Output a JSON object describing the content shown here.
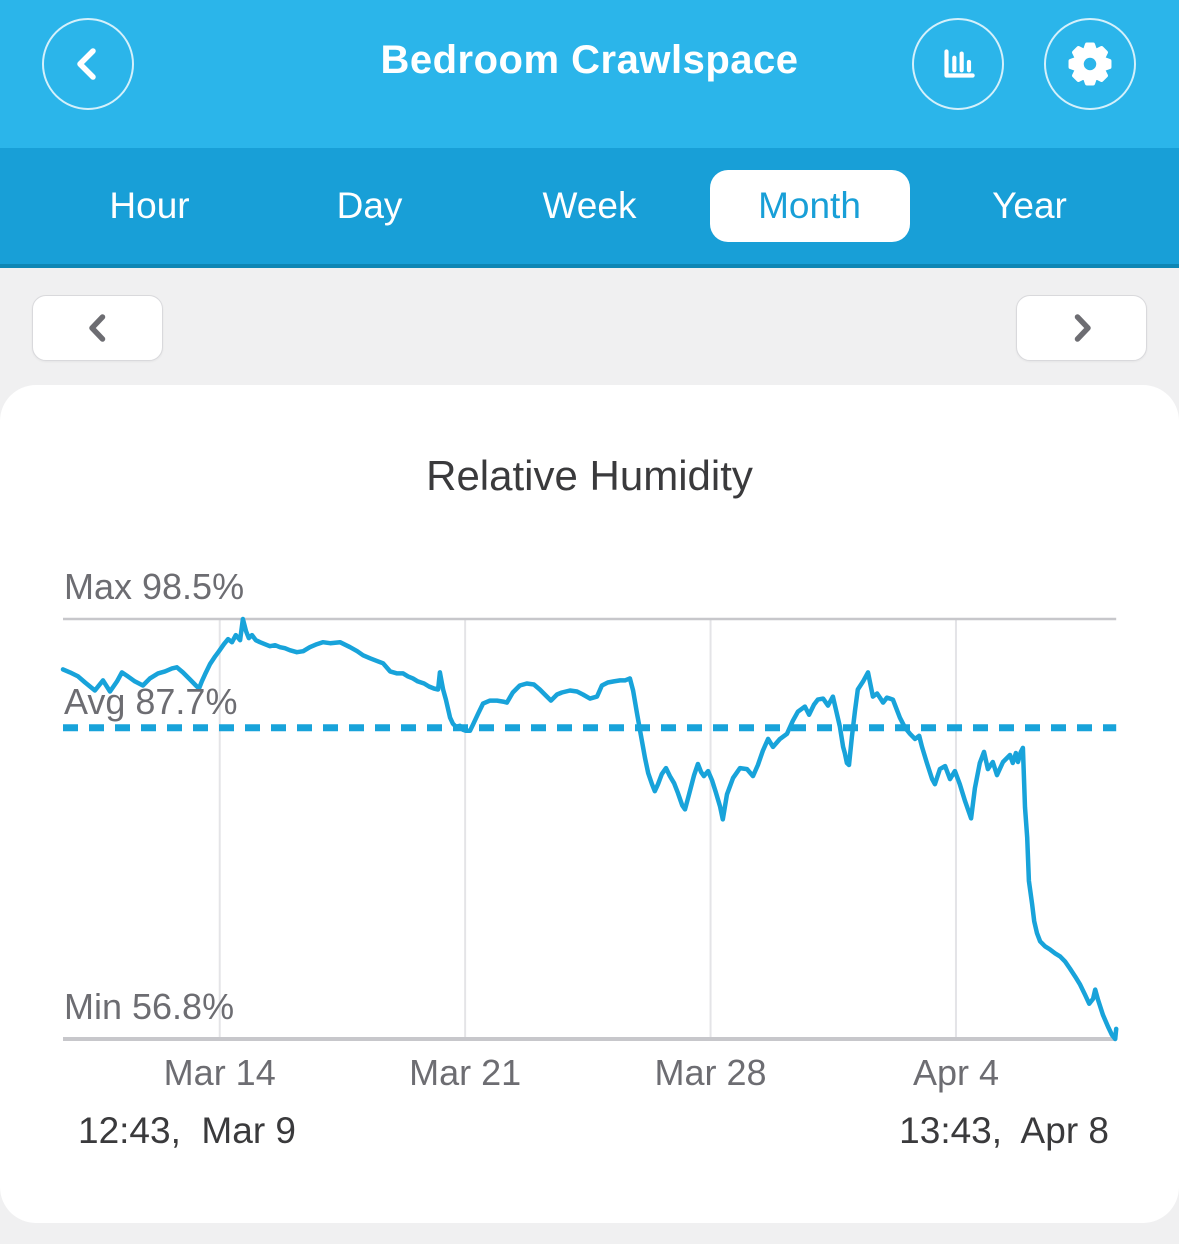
{
  "colors": {
    "header_bg": "#2bb5ea",
    "tab_bg": "#189fd7",
    "tab_border": "#0e86b4",
    "accent": "#18a3da",
    "page_bg": "#f0f0f1",
    "card_bg": "#ffffff",
    "text_dark": "#3a3a3c",
    "text_gray": "#6d6d72",
    "grid_light": "#e4e4e7",
    "grid_dark": "#c7c7cb",
    "button_border": "#d9d9dc"
  },
  "header": {
    "title": "Bedroom Crawlspace",
    "icons": {
      "back": "chevron-left-icon",
      "chart": "bar-chart-icon",
      "settings": "gear-icon"
    }
  },
  "tabs": {
    "items": [
      {
        "label": "Hour",
        "active": false
      },
      {
        "label": "Day",
        "active": false
      },
      {
        "label": "Week",
        "active": false
      },
      {
        "label": "Month",
        "active": true
      },
      {
        "label": "Year",
        "active": false
      }
    ]
  },
  "pager": {
    "prev_icon": "chevron-left-icon",
    "next_icon": "chevron-right-icon"
  },
  "chart_data": {
    "type": "line",
    "title": "Relative Humidity",
    "ylabel": "Relative Humidity (%)",
    "xlabel": "",
    "grid": true,
    "legend": false,
    "stats": {
      "max": 98.5,
      "avg": 87.7,
      "min": 56.8
    },
    "stat_labels": {
      "max": "Max 98.5%",
      "avg": "Avg 87.7%",
      "min": "Min 56.8%"
    },
    "x_range_labels": {
      "start": "12:43,  Mar 9",
      "end": "13:43,  Apr 8"
    },
    "x_axis_days": 30.04,
    "ylim": [
      56.8,
      98.5
    ],
    "x_ticks": [
      {
        "label": "Mar 14",
        "day": 4.47
      },
      {
        "label": "Mar 21",
        "day": 11.47
      },
      {
        "label": "Mar 28",
        "day": 18.47
      },
      {
        "label": "Apr 4",
        "day": 25.47
      }
    ],
    "series": [
      {
        "name": "Relative Humidity",
        "unit": "%",
        "points": [
          [
            0,
            93.5
          ],
          [
            0.2,
            93.2
          ],
          [
            0.43,
            92.8
          ],
          [
            0.63,
            92.2
          ],
          [
            0.91,
            91.4
          ],
          [
            1.14,
            92.4
          ],
          [
            1.34,
            91.3
          ],
          [
            1.54,
            92.3
          ],
          [
            1.68,
            93.2
          ],
          [
            1.85,
            92.8
          ],
          [
            2.05,
            92.3
          ],
          [
            2.28,
            91.9
          ],
          [
            2.48,
            92.6
          ],
          [
            2.71,
            93.1
          ],
          [
            2.91,
            93.3
          ],
          [
            3.11,
            93.6
          ],
          [
            3.25,
            93.7
          ],
          [
            3.42,
            93.2
          ],
          [
            3.62,
            92.5
          ],
          [
            3.79,
            91.9
          ],
          [
            3.88,
            91.6
          ],
          [
            3.96,
            92.3
          ],
          [
            4.05,
            93
          ],
          [
            4.19,
            94
          ],
          [
            4.34,
            94.8
          ],
          [
            4.45,
            95.3
          ],
          [
            4.59,
            96
          ],
          [
            4.71,
            96.5
          ],
          [
            4.82,
            96.2
          ],
          [
            4.93,
            96.9
          ],
          [
            5.05,
            96.4
          ],
          [
            5.13,
            98.5
          ],
          [
            5.22,
            97.3
          ],
          [
            5.3,
            96.6
          ],
          [
            5.39,
            96.9
          ],
          [
            5.5,
            96.4
          ],
          [
            5.62,
            96.2
          ],
          [
            5.76,
            96
          ],
          [
            5.9,
            95.8
          ],
          [
            6.05,
            95.9
          ],
          [
            6.19,
            95.7
          ],
          [
            6.33,
            95.6
          ],
          [
            6.47,
            95.4
          ],
          [
            6.67,
            95.2
          ],
          [
            6.85,
            95.3
          ],
          [
            7.04,
            95.7
          ],
          [
            7.24,
            96
          ],
          [
            7.41,
            96.2
          ],
          [
            7.62,
            96.1
          ],
          [
            7.9,
            96.2
          ],
          [
            8.19,
            95.7
          ],
          [
            8.39,
            95.3
          ],
          [
            8.56,
            94.9
          ],
          [
            8.76,
            94.6
          ],
          [
            8.98,
            94.3
          ],
          [
            9.13,
            94.1
          ],
          [
            9.33,
            93.3
          ],
          [
            9.53,
            93.1
          ],
          [
            9.7,
            93.1
          ],
          [
            9.84,
            92.8
          ],
          [
            9.98,
            92.6
          ],
          [
            10.12,
            92.3
          ],
          [
            10.3,
            92.1
          ],
          [
            10.44,
            91.8
          ],
          [
            10.58,
            91.6
          ],
          [
            10.7,
            91.5
          ],
          [
            10.75,
            93.2
          ],
          [
            10.84,
            91.5
          ],
          [
            10.92,
            90.5
          ],
          [
            11.04,
            88.7
          ],
          [
            11.12,
            88.1
          ],
          [
            11.21,
            87.8
          ],
          [
            11.32,
            87.9
          ],
          [
            11.41,
            87.5
          ],
          [
            11.49,
            87.4
          ],
          [
            11.61,
            87.4
          ],
          [
            11.69,
            88
          ],
          [
            11.84,
            89.1
          ],
          [
            11.98,
            90.1
          ],
          [
            12.18,
            90.4
          ],
          [
            12.38,
            90.4
          ],
          [
            12.55,
            90.3
          ],
          [
            12.66,
            90.2
          ],
          [
            12.83,
            91.2
          ],
          [
            13.03,
            91.9
          ],
          [
            13.23,
            92.1
          ],
          [
            13.43,
            92
          ],
          [
            13.6,
            91.5
          ],
          [
            13.77,
            90.9
          ],
          [
            13.92,
            90.4
          ],
          [
            14.09,
            91
          ],
          [
            14.23,
            91.2
          ],
          [
            14.46,
            91.4
          ],
          [
            14.66,
            91.3
          ],
          [
            14.83,
            91
          ],
          [
            15.03,
            90.6
          ],
          [
            15.23,
            90.8
          ],
          [
            15.37,
            91.9
          ],
          [
            15.54,
            92.2
          ],
          [
            15.71,
            92.3
          ],
          [
            15.89,
            92.4
          ],
          [
            16.03,
            92.4
          ],
          [
            16.17,
            92.6
          ],
          [
            16.26,
            91.4
          ],
          [
            16.37,
            89.2
          ],
          [
            16.46,
            87.4
          ],
          [
            16.6,
            84.7
          ],
          [
            16.69,
            83.2
          ],
          [
            16.8,
            82.1
          ],
          [
            16.88,
            81.4
          ],
          [
            16.97,
            82.1
          ],
          [
            17.08,
            83.1
          ],
          [
            17.2,
            83.7
          ],
          [
            17.31,
            82.9
          ],
          [
            17.43,
            82.2
          ],
          [
            17.54,
            81.2
          ],
          [
            17.66,
            80
          ],
          [
            17.74,
            79.6
          ],
          [
            17.85,
            81
          ],
          [
            18,
            83
          ],
          [
            18.11,
            84.1
          ],
          [
            18.2,
            83.3
          ],
          [
            18.28,
            82.9
          ],
          [
            18.4,
            83.4
          ],
          [
            18.51,
            82.5
          ],
          [
            18.62,
            81.3
          ],
          [
            18.74,
            79.9
          ],
          [
            18.82,
            78.6
          ],
          [
            18.94,
            81.1
          ],
          [
            19.11,
            82.7
          ],
          [
            19.31,
            83.7
          ],
          [
            19.51,
            83.6
          ],
          [
            19.68,
            82.9
          ],
          [
            19.82,
            84
          ],
          [
            19.96,
            85.4
          ],
          [
            20.11,
            86.6
          ],
          [
            20.25,
            85.8
          ],
          [
            20.45,
            86.6
          ],
          [
            20.65,
            87.1
          ],
          [
            20.82,
            88.4
          ],
          [
            20.96,
            89.3
          ],
          [
            21.16,
            89.8
          ],
          [
            21.28,
            89
          ],
          [
            21.42,
            90
          ],
          [
            21.53,
            90.5
          ],
          [
            21.68,
            90.6
          ],
          [
            21.82,
            89.9
          ],
          [
            21.96,
            90.8
          ],
          [
            22.16,
            87.8
          ],
          [
            22.25,
            85.8
          ],
          [
            22.3,
            85.2
          ],
          [
            22.36,
            84.2
          ],
          [
            22.42,
            84
          ],
          [
            22.5,
            86.8
          ],
          [
            22.59,
            89.4
          ],
          [
            22.67,
            91.5
          ],
          [
            22.82,
            92.3
          ],
          [
            22.96,
            93.2
          ],
          [
            23.1,
            90.8
          ],
          [
            23.22,
            91.1
          ],
          [
            23.3,
            90.7
          ],
          [
            23.39,
            90.2
          ],
          [
            23.5,
            90.7
          ],
          [
            23.67,
            90.5
          ],
          [
            23.87,
            88.7
          ],
          [
            24.02,
            87.7
          ],
          [
            24.16,
            87.1
          ],
          [
            24.3,
            86.6
          ],
          [
            24.42,
            86.9
          ],
          [
            24.5,
            85.8
          ],
          [
            24.64,
            84.2
          ],
          [
            24.79,
            82.6
          ],
          [
            24.87,
            82.1
          ],
          [
            25.01,
            83.6
          ],
          [
            25.16,
            83.9
          ],
          [
            25.3,
            82.6
          ],
          [
            25.44,
            83.4
          ],
          [
            25.58,
            82.1
          ],
          [
            25.73,
            80.4
          ],
          [
            25.9,
            78.7
          ],
          [
            26.01,
            81.7
          ],
          [
            26.15,
            84.2
          ],
          [
            26.27,
            85.3
          ],
          [
            26.38,
            83.6
          ],
          [
            26.52,
            84.3
          ],
          [
            26.64,
            83
          ],
          [
            26.81,
            84.3
          ],
          [
            27.01,
            85
          ],
          [
            27.09,
            84.2
          ],
          [
            27.18,
            85.2
          ],
          [
            27.24,
            84.3
          ],
          [
            27.32,
            85.3
          ],
          [
            27.38,
            85.7
          ],
          [
            27.44,
            79.8
          ],
          [
            27.5,
            76.8
          ],
          [
            27.55,
            72.5
          ],
          [
            27.64,
            70.2
          ],
          [
            27.7,
            68.5
          ],
          [
            27.78,
            67.3
          ],
          [
            27.87,
            66.5
          ],
          [
            28.01,
            66
          ],
          [
            28.15,
            65.7
          ],
          [
            28.3,
            65.3
          ],
          [
            28.44,
            65
          ],
          [
            28.58,
            64.5
          ],
          [
            28.72,
            63.8
          ],
          [
            28.87,
            63
          ],
          [
            29.01,
            62.2
          ],
          [
            29.15,
            61.2
          ],
          [
            29.27,
            60.3
          ],
          [
            29.38,
            60.8
          ],
          [
            29.44,
            61.7
          ],
          [
            29.52,
            60.7
          ],
          [
            29.66,
            59.2
          ],
          [
            29.81,
            58
          ],
          [
            29.92,
            57.2
          ],
          [
            30.01,
            56.8
          ],
          [
            30.04,
            57.8
          ]
        ]
      }
    ]
  }
}
